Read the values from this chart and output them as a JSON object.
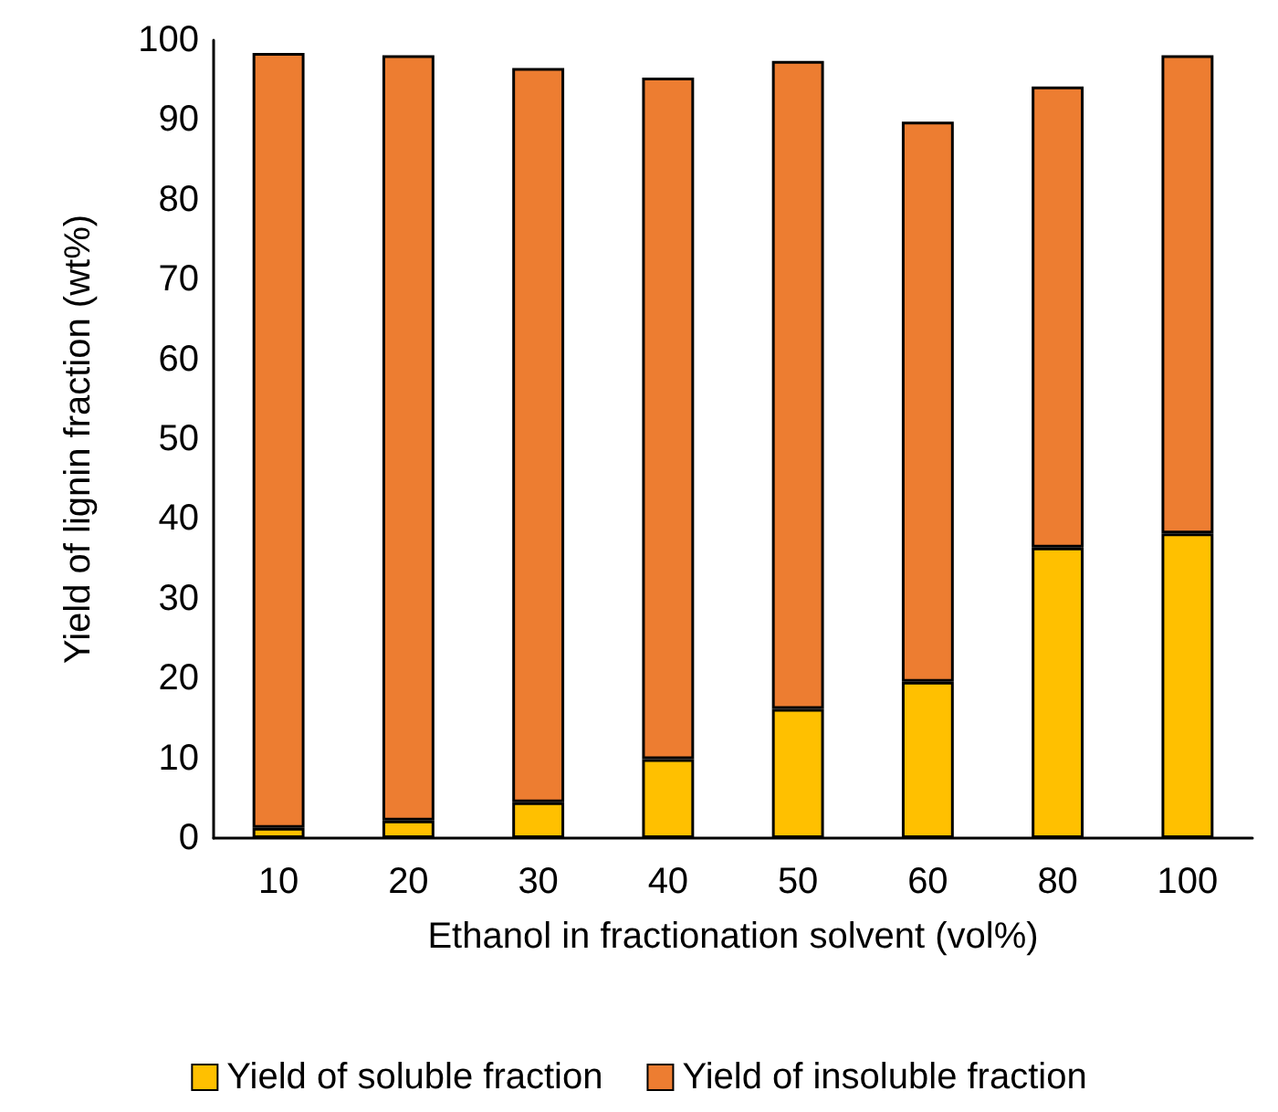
{
  "chart_data": {
    "type": "bar",
    "stacked": true,
    "xlabel": "Ethanol in fractionation solvent (vol%)",
    "ylabel": "Yield of lignin fraction (wt%)",
    "categories": [
      "10",
      "20",
      "30",
      "40",
      "50",
      "60",
      "80",
      "100"
    ],
    "series": [
      {
        "name": "Yield of soluble fraction",
        "color": "#ffc000",
        "values": [
          1.3,
          2.2,
          4.5,
          9.9,
          16.2,
          19.6,
          36.4,
          38.2
        ]
      },
      {
        "name": "Yield of insoluble fraction",
        "color": "#ed7d31",
        "values": [
          97.1,
          95.9,
          92.0,
          85.4,
          81.2,
          70.2,
          57.8,
          59.9
        ]
      }
    ],
    "ylim": [
      0,
      100
    ],
    "yticks": [
      0,
      10,
      20,
      30,
      40,
      50,
      60,
      70,
      80,
      90,
      100
    ],
    "grid": false,
    "legend": "bottom"
  }
}
